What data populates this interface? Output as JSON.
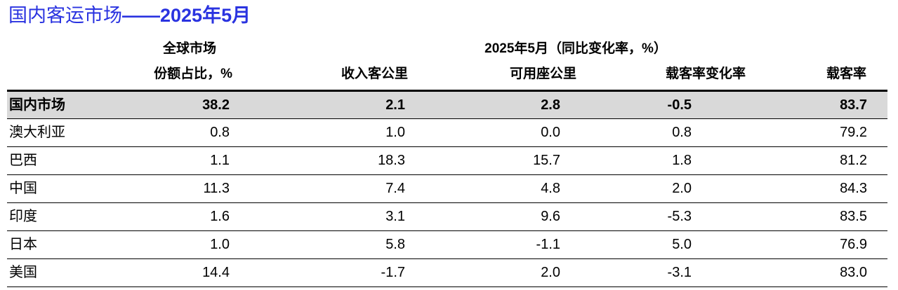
{
  "title": {
    "main": "国内客运市场",
    "dash": "——",
    "date": "2025年5月"
  },
  "header": {
    "share_line1": "全球市场",
    "share_line2": "份额占比，%",
    "group_label": "2025年5月（同比变化率，%）",
    "cols": [
      "收入客公里",
      "可用座公里",
      "载客率变化率",
      "载客率"
    ]
  },
  "rows": [
    {
      "name": "国内市场",
      "share": "38.2",
      "rpk": "2.1",
      "ask": "2.8",
      "plf_change": "-0.5",
      "plf": "83.7"
    },
    {
      "name": "澳大利亚",
      "share": "0.8",
      "rpk": "1.0",
      "ask": "0.0",
      "plf_change": "0.8",
      "plf": "79.2"
    },
    {
      "name": "巴西",
      "share": "1.1",
      "rpk": "18.3",
      "ask": "15.7",
      "plf_change": "1.8",
      "plf": "81.2"
    },
    {
      "name": "中国",
      "share": "11.3",
      "rpk": "7.4",
      "ask": "4.8",
      "plf_change": "2.0",
      "plf": "84.3"
    },
    {
      "name": "印度",
      "share": "1.6",
      "rpk": "3.1",
      "ask": "9.6",
      "plf_change": "-5.3",
      "plf": "83.5"
    },
    {
      "name": "日本",
      "share": "1.0",
      "rpk": "5.8",
      "ask": "-1.1",
      "plf_change": "5.0",
      "plf": "76.9"
    },
    {
      "name": "美国",
      "share": "14.4",
      "rpk": "-1.7",
      "ask": "2.0",
      "plf_change": "-3.1",
      "plf": "83.0"
    }
  ],
  "colors": {
    "title": "#2a33e0",
    "highlight_row": "#d9d9d9"
  }
}
